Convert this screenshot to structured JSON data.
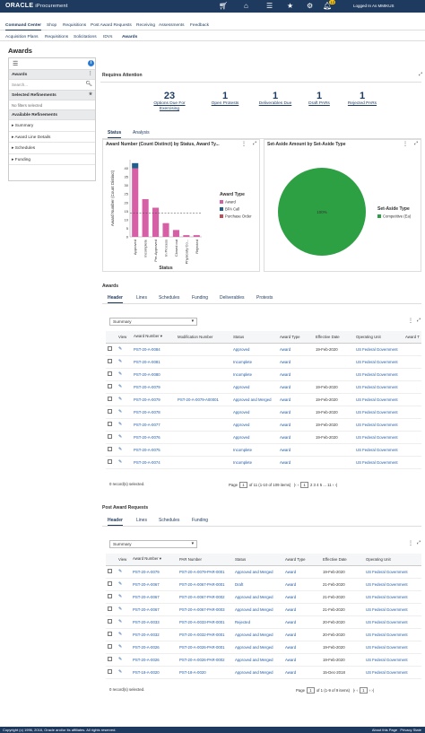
{
  "app": {
    "logo": "ORACLE",
    "product": "iProcurement",
    "notification_count": "12",
    "login_text": "Logged In As MMIKUS"
  },
  "nav_main": [
    "Command Center",
    "Shop",
    "Requisitions",
    "Post Award Requests",
    "Receiving",
    "Assessments",
    "Feedback"
  ],
  "nav_sub": [
    "Acquisition Plans",
    "Requisitions",
    "Solicitations",
    "IDVs",
    "Awards"
  ],
  "page_title": "Awards",
  "sidebar": {
    "header": "Awards",
    "search_placeholder": "Search...",
    "selected_refinements": "Selected Refinements",
    "no_filters": "No filters selected",
    "available_refinements": "Available Refinements",
    "items": [
      "Summary",
      "Award Line Details",
      "Schedules",
      "Funding"
    ]
  },
  "attention": {
    "title": "Requires Attention",
    "stats": [
      {
        "num": "23",
        "label1": "Options Due For",
        "label2": "Exercising"
      },
      {
        "num": "1",
        "label1": "Open Protests",
        "label2": ""
      },
      {
        "num": "1",
        "label1": "Deliverables Due",
        "label2": ""
      },
      {
        "num": "1",
        "label1": "Draft PARs",
        "label2": ""
      },
      {
        "num": "1",
        "label1": "Rejected PARs",
        "label2": ""
      }
    ],
    "tabs": [
      "Status",
      "Analysis"
    ]
  },
  "chart_data": [
    {
      "type": "bar",
      "title": "Award Number (Count Distinct) by Status, Award Ty...",
      "xlabel": "Status",
      "ylabel": "Award Number (Count Distinct)",
      "ylim": [
        0,
        45
      ],
      "yticks": [
        "0",
        "5",
        "10",
        "15",
        "20",
        "25",
        "30",
        "35",
        "40"
      ],
      "categories": [
        "Approved",
        "Incomplete",
        "Pre-Approved",
        "In Process",
        "Closed out",
        "Physically Co...",
        "Rejected"
      ],
      "series": [
        {
          "name": "Award",
          "color": "#d65fa6",
          "values": [
            40,
            22,
            17,
            8,
            4,
            1,
            1
          ]
        },
        {
          "name": "BPA Call",
          "color": "#1f5f8b",
          "values": [
            3,
            0,
            0,
            0,
            0,
            0,
            0
          ]
        },
        {
          "name": "Purchase Order",
          "color": "#c24d56",
          "values": [
            0,
            0,
            0,
            0,
            0,
            0,
            0
          ]
        }
      ],
      "reference_line": 14,
      "legend_title": "Award Type",
      "legend_position": "right"
    },
    {
      "type": "pie",
      "title": "Set-Aside Amount by Set-Aside Type",
      "categories": [
        "Competitive (Ea)"
      ],
      "values": [
        100
      ],
      "slice_label": "100%",
      "color": "#2ea044",
      "legend_title": "Set-Aside Type",
      "legend_position": "right"
    }
  ],
  "awards": {
    "title": "Awards",
    "tabs": [
      "Header",
      "Lines",
      "Schedules",
      "Funding",
      "Deliverables",
      "Protests"
    ],
    "view_select": "Summary",
    "columns": [
      "View",
      "Award Number",
      "Modification Number",
      "Status",
      "Award Type",
      "Effective Date",
      "Operating Unit",
      "Award T"
    ],
    "rows": [
      [
        "PST-20-A-0084",
        "",
        "Approved",
        "Award",
        "19-Feb-2020",
        "US Federal Government"
      ],
      [
        "PST-20-A-0081",
        "",
        "Incomplete",
        "Award",
        "",
        "US Federal Government"
      ],
      [
        "PST-20-A-0080",
        "",
        "Incomplete",
        "Award",
        "",
        "US Federal Government"
      ],
      [
        "PST-20-A-0079",
        "",
        "Approved",
        "Award",
        "19-Feb-2020",
        "US Federal Government"
      ],
      [
        "PST-20-A-0079",
        "PST-20-A-0079-A00001",
        "Approved and Merged",
        "Award",
        "19-Feb-2020",
        "US Federal Government"
      ],
      [
        "PST-20-A-0078",
        "",
        "Approved",
        "Award",
        "19-Feb-2020",
        "US Federal Government"
      ],
      [
        "PST-20-A-0077",
        "",
        "Approved",
        "Award",
        "19-Feb-2020",
        "US Federal Government"
      ],
      [
        "PST-20-A-0076",
        "",
        "Approved",
        "Award",
        "19-Feb-2020",
        "US Federal Government"
      ],
      [
        "PST-20-A-0075",
        "",
        "Incomplete",
        "Award",
        "",
        "US Federal Government"
      ],
      [
        "PST-20-A-0074",
        "",
        "Incomplete",
        "Award",
        "",
        "US Federal Government"
      ]
    ],
    "selected_text": "0 record(s) selected.",
    "pager": {
      "page_label": "Page",
      "page": "1",
      "of": "of 11",
      "range": "(1-10 of 109 items)",
      "pages": [
        "1",
        "2",
        "3",
        "4",
        "5",
        "...",
        "11"
      ]
    }
  },
  "par": {
    "title": "Post Award Requests",
    "tabs": [
      "Header",
      "Lines",
      "Schedules",
      "Funding"
    ],
    "view_select": "Summary",
    "columns": [
      "View",
      "Award Number",
      "PAR Number",
      "Status",
      "Award Type",
      "Effective Date",
      "Operating Unit"
    ],
    "rows": [
      [
        "PST-20-A-0079",
        "PST-20-A-0079-PAR-0001",
        "Approved and Merged",
        "Award",
        "19-Feb-2020",
        "US Federal Government"
      ],
      [
        "PST-20-A-0067",
        "PST-20-A-0067-PAR-0001",
        "Draft",
        "Award",
        "21-Feb-2020",
        "US Federal Government"
      ],
      [
        "PST-20-A-0067",
        "PST-20-A-0067-PAR-0002",
        "Approved and Merged",
        "Award",
        "21-Feb-2020",
        "US Federal Government"
      ],
      [
        "PST-20-A-0067",
        "PST-20-A-0067-PAR-0003",
        "Approved and Merged",
        "Award",
        "21-Feb-2020",
        "US Federal Government"
      ],
      [
        "PST-20-A-0033",
        "PST-20-A-0033-PAR-0001",
        "Rejected",
        "Award",
        "20-Feb-2020",
        "US Federal Government"
      ],
      [
        "PST-20-A-0032",
        "PST-20-A-0032-PAR-0001",
        "Approved and Merged",
        "Award",
        "20-Feb-2020",
        "US Federal Government"
      ],
      [
        "PST-20-A-0026",
        "PST-20-A-0026-PAR-0001",
        "Approved and Merged",
        "Award",
        "19-Feb-2020",
        "US Federal Government"
      ],
      [
        "PST-20-A-0026",
        "PST-20-A-0026-PAR-0002",
        "Approved and Merged",
        "Award",
        "19-Feb-2020",
        "US Federal Government"
      ],
      [
        "PST-18-A-0020",
        "PST-18-A-0020",
        "Approved and Merged",
        "Award",
        "15-Dec-2018",
        "US Federal Government"
      ]
    ],
    "selected_text": "0 record(s) selected.",
    "pager": {
      "page_label": "Page",
      "page": "1",
      "of": "of 1",
      "range": "(1-9 of 9 items)",
      "pages": [
        "1"
      ]
    }
  },
  "footer": {
    "copyright": "Copyright (c) 1996, 2016, Oracle and/or its affiliates. All rights reserved.",
    "about": "About this Page",
    "privacy": "Privacy State"
  }
}
